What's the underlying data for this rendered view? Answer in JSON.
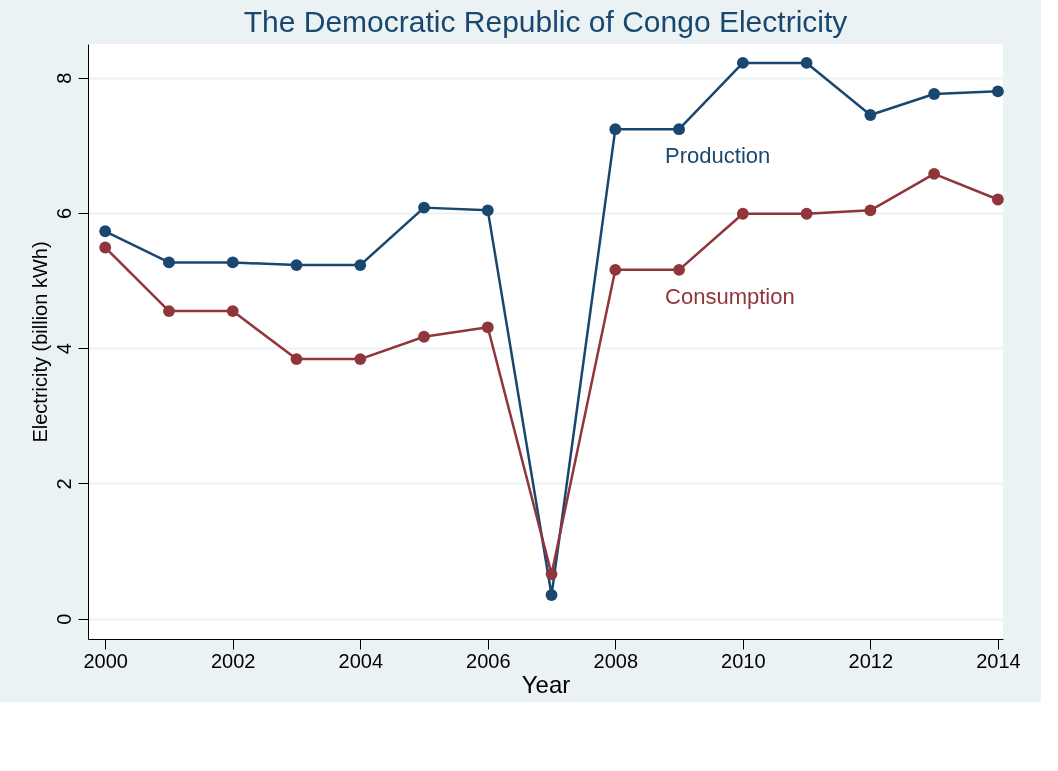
{
  "chart_data": {
    "type": "line",
    "title": "The Democratic Republic of Congo Electricity",
    "xlabel": "Year",
    "ylabel": "Electricity (billion kWh)",
    "x": [
      2000,
      2001,
      2002,
      2003,
      2004,
      2005,
      2006,
      2007,
      2008,
      2009,
      2010,
      2011,
      2012,
      2013,
      2014
    ],
    "series": [
      {
        "name": "Production",
        "color": "#1a476f",
        "values": [
          5.73,
          5.27,
          5.27,
          5.23,
          5.23,
          6.08,
          6.04,
          0.35,
          7.24,
          7.24,
          8.22,
          8.22,
          7.45,
          7.76,
          7.8
        ]
      },
      {
        "name": "Consumption",
        "color": "#90353b",
        "values": [
          5.49,
          4.55,
          4.55,
          3.84,
          3.84,
          4.17,
          4.31,
          0.66,
          5.16,
          5.16,
          5.99,
          5.99,
          6.04,
          6.58,
          6.2
        ]
      }
    ],
    "xlim": [
      1999.73,
      2014.08
    ],
    "xticks": [
      2000,
      2002,
      2004,
      2006,
      2008,
      2010,
      2012,
      2014
    ],
    "ylim": [
      -0.3,
      8.5
    ],
    "yticks": [
      0,
      2,
      4,
      6,
      8
    ],
    "grid": "y",
    "legend": false,
    "marker": "circle",
    "line_style": "solid"
  }
}
